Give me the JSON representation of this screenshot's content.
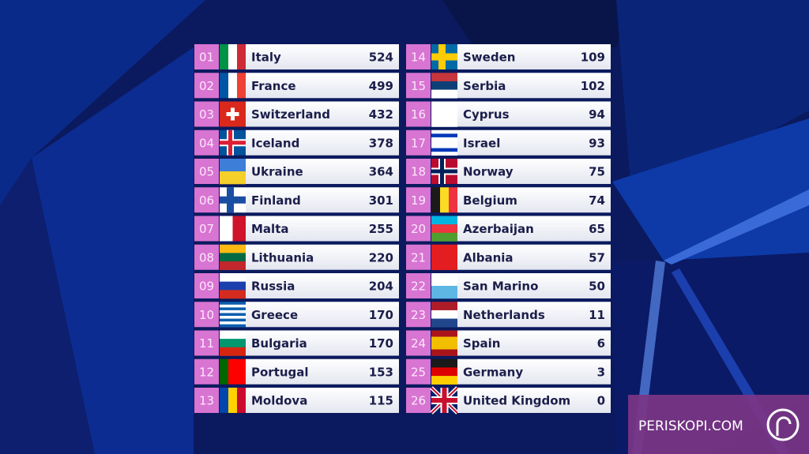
{
  "scoreboard": {
    "left": [
      {
        "rank": "01",
        "country": "Italy",
        "points": 524
      },
      {
        "rank": "02",
        "country": "France",
        "points": 499
      },
      {
        "rank": "03",
        "country": "Switzerland",
        "points": 432
      },
      {
        "rank": "04",
        "country": "Iceland",
        "points": 378
      },
      {
        "rank": "05",
        "country": "Ukraine",
        "points": 364
      },
      {
        "rank": "06",
        "country": "Finland",
        "points": 301
      },
      {
        "rank": "07",
        "country": "Malta",
        "points": 255
      },
      {
        "rank": "08",
        "country": "Lithuania",
        "points": 220
      },
      {
        "rank": "09",
        "country": "Russia",
        "points": 204
      },
      {
        "rank": "10",
        "country": "Greece",
        "points": 170
      },
      {
        "rank": "11",
        "country": "Bulgaria",
        "points": 170
      },
      {
        "rank": "12",
        "country": "Portugal",
        "points": 153
      },
      {
        "rank": "13",
        "country": "Moldova",
        "points": 115
      }
    ],
    "right": [
      {
        "rank": "14",
        "country": "Sweden",
        "points": 109
      },
      {
        "rank": "15",
        "country": "Serbia",
        "points": 102
      },
      {
        "rank": "16",
        "country": "Cyprus",
        "points": 94
      },
      {
        "rank": "17",
        "country": "Israel",
        "points": 93
      },
      {
        "rank": "18",
        "country": "Norway",
        "points": 75
      },
      {
        "rank": "19",
        "country": "Belgium",
        "points": 74
      },
      {
        "rank": "20",
        "country": "Azerbaijan",
        "points": 65
      },
      {
        "rank": "21",
        "country": "Albania",
        "points": 57
      },
      {
        "rank": "22",
        "country": "San Marino",
        "points": 50
      },
      {
        "rank": "23",
        "country": "Netherlands",
        "points": 11
      },
      {
        "rank": "24",
        "country": "Spain",
        "points": 6
      },
      {
        "rank": "25",
        "country": "Germany",
        "points": 3
      },
      {
        "rank": "26",
        "country": "United Kingdom",
        "points": 0
      }
    ]
  },
  "watermark": "PERISKOPI.COM"
}
